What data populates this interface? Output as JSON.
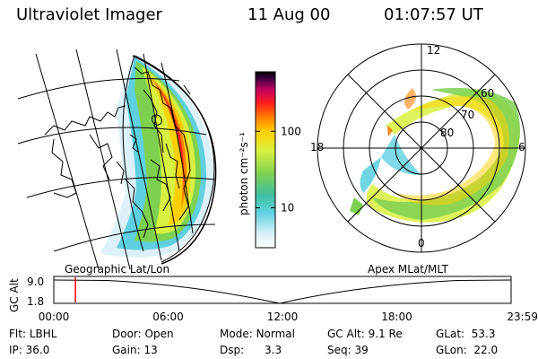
{
  "header": {
    "title": "Ultraviolet Imager",
    "date": "11 Aug 00",
    "time": "01:07:57 UT"
  },
  "colorbar": {
    "label": "photon cm⁻²s⁻¹",
    "ticks": [
      "100",
      "10"
    ],
    "tick_values": [
      100,
      10
    ],
    "scale": "log",
    "range": [
      3,
      600
    ],
    "colors": [
      "#ffffff",
      "#d8f0f8",
      "#60d0e0",
      "#40c0a0",
      "#7fd050",
      "#d8f040",
      "#ffd000",
      "#ff8000",
      "#ff2020",
      "#c00060",
      "#400040",
      "#000000"
    ]
  },
  "left_map": {
    "projection_label": "Geographic Lat/Lon"
  },
  "polar_plot": {
    "projection_label": "Apex MLat/MLT",
    "mlt_labels": [
      "12",
      "18",
      "6",
      "0"
    ],
    "mlat_labels": [
      "60",
      "70",
      "80"
    ]
  },
  "timeline": {
    "ylabel": "GC Alt",
    "yticks": [
      "9.0",
      "1.8"
    ],
    "ytick_values": [
      9.0,
      1.8
    ],
    "xticks": [
      "00:00",
      "06:00",
      "12:00",
      "18:00",
      "23:59"
    ],
    "x_range": [
      0,
      1439
    ],
    "current_time_minutes": 68,
    "marker_color": "#ff0000"
  },
  "info": {
    "row1": [
      {
        "label": "Flt:",
        "value": "LBHL"
      },
      {
        "label": "Door:",
        "value": "Open"
      },
      {
        "label": "Mode:",
        "value": "Normal"
      },
      {
        "label": "GC Alt:",
        "value": "9.1 Re"
      },
      {
        "label": "GLat:",
        "value": "53.3"
      }
    ],
    "row2": [
      {
        "label": "IP:",
        "value": "36.0"
      },
      {
        "label": "Gain:",
        "value": "13"
      },
      {
        "label": "Dsp:",
        "value": "3.3"
      },
      {
        "label": "Seq:",
        "value": "39"
      },
      {
        "label": "GLon:",
        "value": "22.0"
      }
    ]
  }
}
